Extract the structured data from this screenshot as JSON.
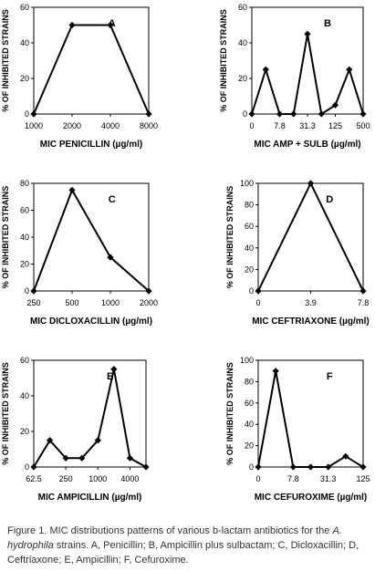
{
  "y_axis_title": "% OF INHIBITED STRAINS",
  "caption": {
    "label": "Figure 1.",
    "text_before": "Figure 1. MIC distributions patterns of various b-lactam antibiotics for the ",
    "species": "A. hydrophila",
    "text_after": " strains. A, Penicillin; B, Ampicillin plus sulbactam; C, Dicloxacillin; D, Ceftriaxone; E, Ampicillin; F, Cefuroxime."
  },
  "chart_data": [
    {
      "type": "line",
      "letter": "A",
      "xlabel": "MIC PENICILLIN (µg/ml)",
      "ylabel": "% OF INHIBITED STRAINS",
      "x": [
        "1000",
        "2000",
        "4000",
        "8000"
      ],
      "x_tick_labels": [
        "1000",
        "2000",
        "4000",
        "8000"
      ],
      "values": [
        0,
        50,
        50,
        0
      ],
      "ylim": [
        0,
        60
      ],
      "yticks": [
        0,
        20,
        40,
        60
      ]
    },
    {
      "type": "line",
      "letter": "B",
      "xlabel": "MIC AMP + SULB (µg/ml)",
      "ylabel": "% OF INHIBITED STRAINS",
      "x": [
        "0",
        "3.9",
        "7.8",
        "15.6",
        "31.3",
        "62.5",
        "125",
        "250",
        "500"
      ],
      "x_tick_labels": [
        "0",
        "7.8",
        "31.3",
        "125",
        "500"
      ],
      "values": [
        0,
        25,
        0,
        0,
        45,
        0,
        5,
        25,
        0
      ],
      "ylim": [
        0,
        60
      ],
      "yticks": [
        0,
        20,
        40,
        60
      ]
    },
    {
      "type": "line",
      "letter": "C",
      "xlabel": "MIC DICLOXACILLIN (µg/ml)",
      "ylabel": "% OF INHIBITED STRAINS",
      "x": [
        "250",
        "500",
        "1000",
        "2000"
      ],
      "x_tick_labels": [
        "250",
        "500",
        "1000",
        "2000"
      ],
      "values": [
        0,
        75,
        25,
        0
      ],
      "ylim": [
        0,
        80
      ],
      "yticks": [
        0,
        20,
        40,
        60,
        80
      ]
    },
    {
      "type": "line",
      "letter": "D",
      "xlabel": "MIC CEFTRIAXONE (µg/ml)",
      "ylabel": "% OF INHIBITED STRAINS",
      "x": [
        "0",
        "3.9",
        "7.8"
      ],
      "x_tick_labels": [
        "0",
        "3.9",
        "7.8"
      ],
      "values": [
        0,
        100,
        0
      ],
      "ylim": [
        0,
        100
      ],
      "yticks": [
        0,
        20,
        40,
        60,
        80,
        100
      ]
    },
    {
      "type": "line",
      "letter": "E",
      "xlabel": "MIC AMPICILLIN (µg/ml)",
      "ylabel": "% OF INHIBITED STRAINS",
      "x": [
        "62.5",
        "125",
        "250",
        "500",
        "1000",
        "2000",
        "4000",
        "8000"
      ],
      "x_tick_labels": [
        "62.5",
        "250",
        "1000",
        "4000"
      ],
      "values": [
        0,
        15,
        5,
        5,
        15,
        55,
        5,
        0
      ],
      "ylim": [
        0,
        60
      ],
      "yticks": [
        0,
        20,
        40,
        60
      ]
    },
    {
      "type": "line",
      "letter": "F",
      "xlabel": "MIC CEFUROXIME (µg/ml)",
      "ylabel": "% OF INHIBITED STRAINS",
      "x": [
        "0",
        "3.9",
        "7.8",
        "15.6",
        "31.3",
        "62.5",
        "125"
      ],
      "x_tick_labels": [
        "0",
        "7.8",
        "31.3",
        "125"
      ],
      "values": [
        0,
        90,
        0,
        0,
        0,
        10,
        0
      ],
      "ylim": [
        0,
        100
      ],
      "yticks": [
        0,
        20,
        40,
        60,
        80,
        100
      ]
    }
  ]
}
